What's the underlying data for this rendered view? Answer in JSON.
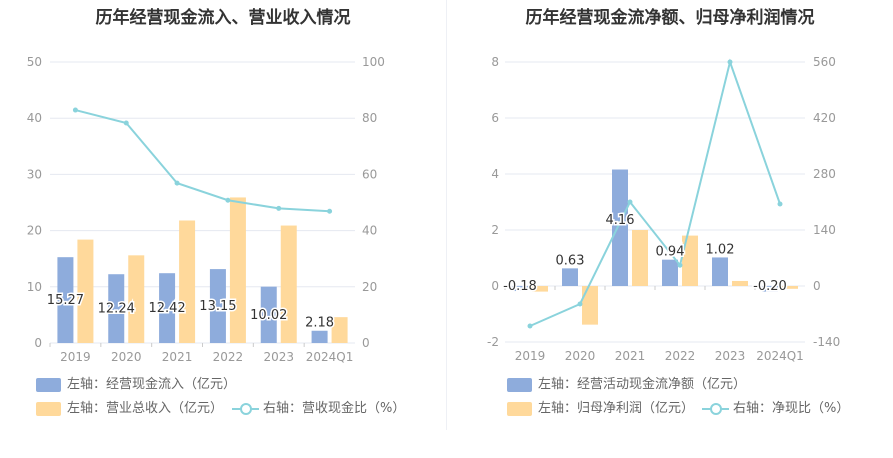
{
  "colors": {
    "bar_blue": "#8eacdc",
    "bar_orange": "#ffd99b",
    "line": "#8ad3dc",
    "axis_text": "#999999",
    "grid": "#e5e8f0"
  },
  "chart_data": [
    {
      "type": "bar",
      "title": "历年经营现金流入、营业收入情况",
      "categories": [
        "2019",
        "2020",
        "2021",
        "2022",
        "2023",
        "2024Q1"
      ],
      "y_left": {
        "ticks": [
          "0",
          "10",
          "20",
          "30",
          "40",
          "50"
        ],
        "ylim": [
          0,
          50
        ]
      },
      "y_right": {
        "ticks": [
          "0",
          "20",
          "40",
          "60",
          "80",
          "100"
        ],
        "ylim": [
          0,
          100
        ]
      },
      "grid": true,
      "legend_position": "bottom-left",
      "series": [
        {
          "name": "左轴：经营现金流入（亿元）",
          "kind": "bar",
          "axis": "left",
          "color": "#8eacdc",
          "values": [
            15.27,
            12.24,
            12.42,
            13.15,
            10.02,
            2.18
          ],
          "labels": [
            "15.27",
            "12.24",
            "12.42",
            "13.15",
            "10.02",
            "2.18"
          ]
        },
        {
          "name": "左轴：营业总收入（亿元）",
          "kind": "bar",
          "axis": "left",
          "color": "#ffd99b",
          "values": [
            18.4,
            15.6,
            21.8,
            25.9,
            20.9,
            4.6
          ]
        },
        {
          "name": "右轴：营收现金比（%）",
          "kind": "line",
          "axis": "right",
          "color": "#8ad3dc",
          "values": [
            82.9,
            78.3,
            56.9,
            50.8,
            47.9,
            46.9
          ]
        }
      ]
    },
    {
      "type": "bar",
      "title": "历年经营现金流净额、归母净利润情况",
      "categories": [
        "2019",
        "2020",
        "2021",
        "2022",
        "2023",
        "2024Q1"
      ],
      "y_left": {
        "ticks": [
          "-2",
          "0",
          "2",
          "4",
          "6",
          "8"
        ],
        "ylim": [
          -2,
          8
        ]
      },
      "y_right": {
        "ticks": [
          "-140",
          "0",
          "140",
          "280",
          "420",
          "560"
        ],
        "ylim": [
          -140,
          560
        ]
      },
      "grid": true,
      "legend_position": "bottom-left",
      "series": [
        {
          "name": "左轴：经营活动现金流净额（亿元）",
          "kind": "bar",
          "axis": "left",
          "color": "#8eacdc",
          "values": [
            -0.18,
            0.63,
            4.16,
            0.94,
            1.02,
            -0.2
          ],
          "labels": [
            "-0.18",
            "0.63",
            "4.16",
            "0.94",
            "1.02",
            "-0.20"
          ]
        },
        {
          "name": "左轴：归母净利润（亿元）",
          "kind": "bar",
          "axis": "left",
          "color": "#ffd99b",
          "values": [
            -0.2,
            -1.38,
            2.0,
            1.8,
            0.18,
            -0.1
          ]
        },
        {
          "name": "右轴：净现比（%）",
          "kind": "line",
          "axis": "right",
          "color": "#8ad3dc",
          "values": [
            -100,
            -45,
            210,
            52,
            560,
            205
          ]
        }
      ]
    }
  ]
}
